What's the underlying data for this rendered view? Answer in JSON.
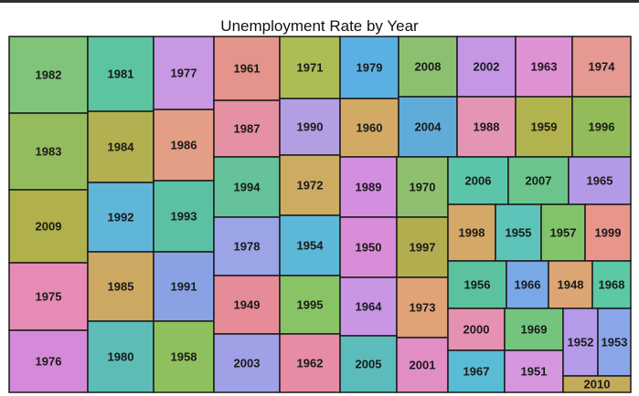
{
  "chart_data": {
    "type": "treemap",
    "title": "Unemployment Rate by Year",
    "tiles": [
      {
        "label": "1982",
        "color": "#7fc47a"
      },
      {
        "label": "1981",
        "color": "#5cc4a0"
      },
      {
        "label": "1977",
        "color": "#c898e2"
      },
      {
        "label": "1983",
        "color": "#94bc5e"
      },
      {
        "label": "1984",
        "color": "#b2b050"
      },
      {
        "label": "1986",
        "color": "#e49e86"
      },
      {
        "label": "2009",
        "color": "#b0b04c"
      },
      {
        "label": "1992",
        "color": "#60b6d8"
      },
      {
        "label": "1993",
        "color": "#5cc0a4"
      },
      {
        "label": "1975",
        "color": "#e68ab6"
      },
      {
        "label": "1985",
        "color": "#cda863"
      },
      {
        "label": "1991",
        "color": "#8aa2e4"
      },
      {
        "label": "1976",
        "color": "#d48ad8"
      },
      {
        "label": "1980",
        "color": "#5ebcb6"
      },
      {
        "label": "1958",
        "color": "#8fc05e"
      },
      {
        "label": "1961",
        "color": "#e4948a"
      },
      {
        "label": "1971",
        "color": "#aebc56"
      },
      {
        "label": "1979",
        "color": "#5ab0e2"
      },
      {
        "label": "2008",
        "color": "#8cc070"
      },
      {
        "label": "2002",
        "color": "#c496e4"
      },
      {
        "label": "1963",
        "color": "#de92d4"
      },
      {
        "label": "1974",
        "color": "#e69892"
      },
      {
        "label": "1987",
        "color": "#e690a4"
      },
      {
        "label": "1990",
        "color": "#b49ee2"
      },
      {
        "label": "1960",
        "color": "#d2aa64"
      },
      {
        "label": "2004",
        "color": "#60acd8"
      },
      {
        "label": "1988",
        "color": "#e494b4"
      },
      {
        "label": "1959",
        "color": "#b2b24e"
      },
      {
        "label": "1996",
        "color": "#92bc5a"
      },
      {
        "label": "1994",
        "color": "#66c29a"
      },
      {
        "label": "1972",
        "color": "#cdac62"
      },
      {
        "label": "1989",
        "color": "#d48ee0"
      },
      {
        "label": "1970",
        "color": "#8ec070"
      },
      {
        "label": "1978",
        "color": "#9aa4e6"
      },
      {
        "label": "1954",
        "color": "#5cb8d6"
      },
      {
        "label": "1950",
        "color": "#d98cd8"
      },
      {
        "label": "1997",
        "color": "#b2ae50"
      },
      {
        "label": "1949",
        "color": "#e68c98"
      },
      {
        "label": "1995",
        "color": "#88c466"
      },
      {
        "label": "1964",
        "color": "#c896e2"
      },
      {
        "label": "1973",
        "color": "#e0a276"
      },
      {
        "label": "2003",
        "color": "#a0a0e6"
      },
      {
        "label": "1962",
        "color": "#e68ca4"
      },
      {
        "label": "2005",
        "color": "#5cbcbc"
      },
      {
        "label": "2001",
        "color": "#e08ec4"
      },
      {
        "label": "2006",
        "color": "#5cc4a8"
      },
      {
        "label": "2007",
        "color": "#6ac48c"
      },
      {
        "label": "1965",
        "color": "#b49ae6"
      },
      {
        "label": "1998",
        "color": "#d4a866"
      },
      {
        "label": "1955",
        "color": "#5cc4b8"
      },
      {
        "label": "1957",
        "color": "#82c46a"
      },
      {
        "label": "1999",
        "color": "#e8958c"
      },
      {
        "label": "1956",
        "color": "#5cc29e"
      },
      {
        "label": "1966",
        "color": "#78a8e6"
      },
      {
        "label": "1948",
        "color": "#dca674"
      },
      {
        "label": "1968",
        "color": "#5cc8a4"
      },
      {
        "label": "2000",
        "color": "#e690b2"
      },
      {
        "label": "1969",
        "color": "#74c47e"
      },
      {
        "label": "1967",
        "color": "#58bcd4"
      },
      {
        "label": "1951",
        "color": "#d696de"
      },
      {
        "label": "1952",
        "color": "#b49ae8"
      },
      {
        "label": "1953",
        "color": "#8aa6e8"
      },
      {
        "label": "2010",
        "color": "#c4aa5a"
      }
    ]
  }
}
